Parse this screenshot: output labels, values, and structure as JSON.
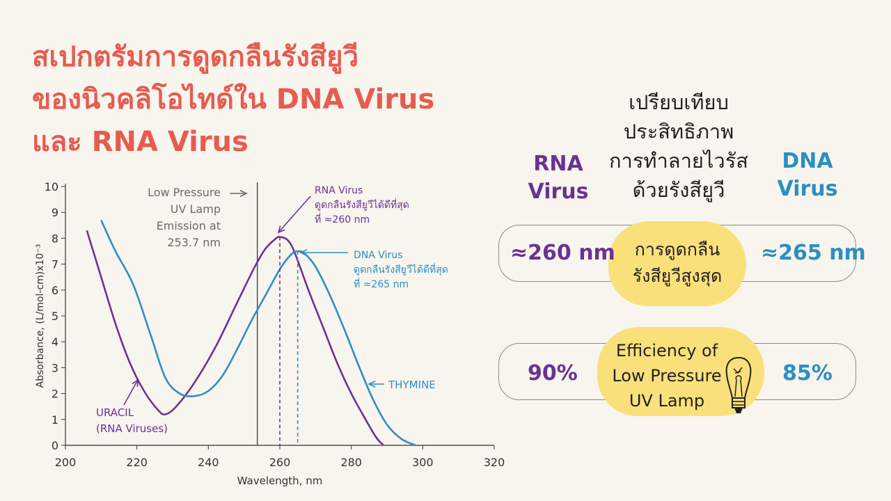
{
  "title": {
    "lines": [
      "สเปกตรัมการดูดกลืนรังสียูวี",
      "ของนิวคลิโอไทด์ใน DNA Virus",
      "และ RNA Virus"
    ]
  },
  "comparison": {
    "title_lines": [
      "เปรียบเทียบ",
      "ประสิทธิภาพ",
      "การทำลายไวรัส",
      "ด้วยรังสียูวี"
    ],
    "rna_label": "RNA Virus",
    "dna_label": "DNA Virus",
    "rows": [
      {
        "rna_value": "≈260 nm",
        "center_lines": [
          "การดูดกลืน",
          "รังสียูวีสูงสุด"
        ],
        "dna_value": "≈265 nm"
      },
      {
        "rna_value": "90%",
        "center_lines": [
          "Efficiency of",
          "Low Pressure",
          "UV Lamp"
        ],
        "dna_value": "85%"
      }
    ],
    "bulb_icon": "light-bulb-icon"
  },
  "colors": {
    "title": "#e65c4f",
    "rna": "#6a3293",
    "dna": "#2b8fc2",
    "highlight": "#f9e07a",
    "background": "#f8f4ee"
  },
  "chart_data": {
    "type": "line",
    "xlabel": "Wavelength, nm",
    "ylabel": "Absorbance, (L/mol-cm)x10⁻³",
    "xlim": [
      200,
      320
    ],
    "ylim": [
      0,
      10
    ],
    "x_ticks": [
      200,
      220,
      240,
      260,
      280,
      300,
      320
    ],
    "y_ticks": [
      0,
      1,
      2,
      3,
      4,
      5,
      6,
      7,
      8,
      9,
      10
    ],
    "series": [
      {
        "name": "URACIL (RNA Viruses)",
        "color": "#6a3293",
        "points": [
          [
            206,
            8.3
          ],
          [
            210,
            6.5
          ],
          [
            214,
            4.7
          ],
          [
            218,
            3.2
          ],
          [
            222,
            2.1
          ],
          [
            226,
            1.35
          ],
          [
            228,
            1.2
          ],
          [
            231,
            1.5
          ],
          [
            236,
            2.4
          ],
          [
            242,
            3.8
          ],
          [
            248,
            5.5
          ],
          [
            253,
            6.9
          ],
          [
            256,
            7.6
          ],
          [
            259,
            8.0
          ],
          [
            260,
            8.05
          ],
          [
            262,
            7.95
          ],
          [
            264,
            7.5
          ],
          [
            268,
            6.0
          ],
          [
            272,
            4.6
          ],
          [
            276,
            3.2
          ],
          [
            280,
            2.0
          ],
          [
            284,
            1.0
          ],
          [
            287,
            0.3
          ],
          [
            289,
            0.0
          ]
        ]
      },
      {
        "name": "THYMINE",
        "color": "#2b8fc2",
        "points": [
          [
            210,
            8.7
          ],
          [
            214,
            7.5
          ],
          [
            219,
            6.2
          ],
          [
            224,
            4.2
          ],
          [
            228,
            2.6
          ],
          [
            232,
            2.0
          ],
          [
            236,
            1.9
          ],
          [
            240,
            2.1
          ],
          [
            244,
            2.7
          ],
          [
            248,
            3.7
          ],
          [
            252,
            4.8
          ],
          [
            256,
            5.8
          ],
          [
            260,
            6.8
          ],
          [
            263,
            7.35
          ],
          [
            265,
            7.5
          ],
          [
            267,
            7.4
          ],
          [
            270,
            6.9
          ],
          [
            274,
            5.8
          ],
          [
            278,
            4.5
          ],
          [
            282,
            3.1
          ],
          [
            286,
            1.8
          ],
          [
            290,
            0.8
          ],
          [
            294,
            0.25
          ],
          [
            298,
            0.0
          ]
        ]
      }
    ],
    "reference_line": {
      "x": 253.7,
      "label_lines": [
        "Low Pressure",
        "UV Lamp",
        "Emission at",
        "253.7 nm"
      ]
    },
    "peaks": [
      {
        "x": 260,
        "y": 8.05,
        "color": "#6a3293",
        "label_lines": [
          "RNA Virus",
          "ดูดกลืนรังสียูวีได้ดีที่สุด",
          "ที่ ≈260 nm"
        ]
      },
      {
        "x": 265,
        "y": 7.5,
        "color": "#2b8fc2",
        "label_lines": [
          "DNA Virus",
          "ดูดกลืนรังสียูวีได้ดีที่สุด",
          "ที่ ≈265 nm"
        ]
      }
    ],
    "annotations": [
      {
        "series": "THYMINE",
        "label_lines": [
          "THYMINE"
        ],
        "color": "#2b8fc2"
      },
      {
        "series": "URACIL",
        "label_lines": [
          "URACIL",
          "(RNA Viruses)"
        ],
        "color": "#6a3293"
      }
    ]
  }
}
